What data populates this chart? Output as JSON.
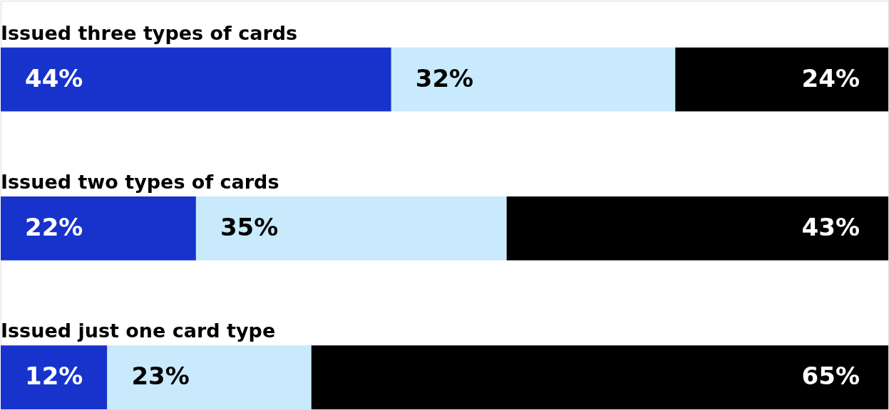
{
  "chart_data": {
    "type": "bar",
    "orientation": "horizontal",
    "stacked": true,
    "categories": [
      "Issued three types of cards",
      "Issued two types of cards",
      "Issued just one card type"
    ],
    "series": [
      {
        "color": "#1733cc",
        "values": [
          44,
          22,
          12
        ],
        "value_labels": [
          "44%",
          "22%",
          "12%"
        ]
      },
      {
        "color": "#c8eafc",
        "values": [
          32,
          35,
          23
        ],
        "value_labels": [
          "32%",
          "35%",
          "23%"
        ]
      },
      {
        "color": "#000000",
        "values": [
          24,
          43,
          65
        ],
        "value_labels": [
          "24%",
          "43%",
          "65%"
        ]
      }
    ],
    "tick_labels": false
  }
}
